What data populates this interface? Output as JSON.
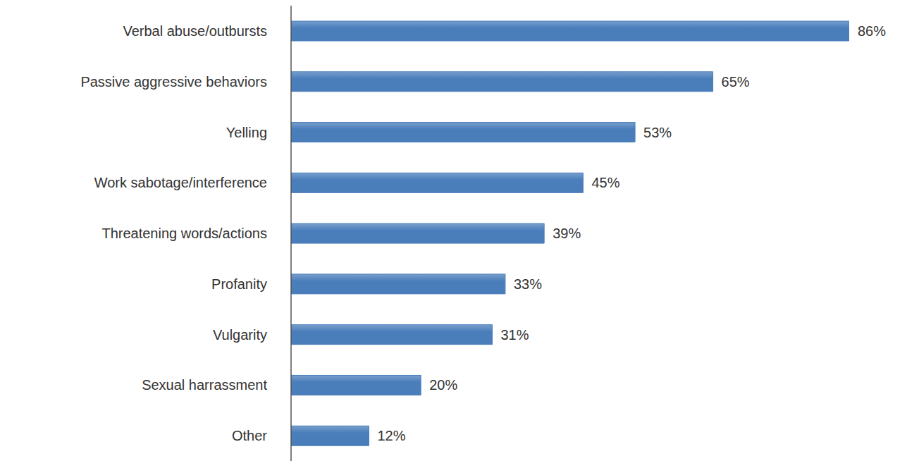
{
  "chart_data": {
    "type": "bar",
    "orientation": "horizontal",
    "categories": [
      "Verbal abuse/outbursts",
      "Passive aggressive behaviors",
      "Yelling",
      "Work sabotage/interference",
      "Threatening words/actions",
      "Profanity",
      "Vulgarity",
      "Sexual harrassment",
      "Other"
    ],
    "values": [
      86,
      65,
      53,
      45,
      39,
      33,
      31,
      20,
      12
    ],
    "value_labels": [
      "86%",
      "65%",
      "53%",
      "45%",
      "39%",
      "33%",
      "31%",
      "20%",
      "12%"
    ],
    "color": "#4a7ebb",
    "data_labels": true,
    "tick_labels": "y",
    "grid": false
  }
}
